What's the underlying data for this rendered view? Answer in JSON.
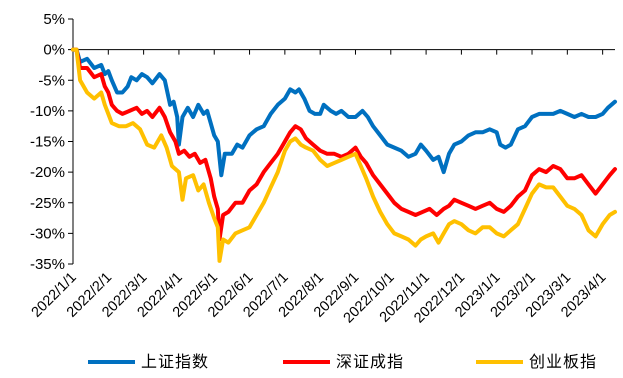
{
  "chart_data": {
    "type": "line",
    "title": "",
    "xlabel": "",
    "ylabel": "",
    "ylim": [
      -35,
      5
    ],
    "yticks": [
      5,
      0,
      -5,
      -10,
      -15,
      -20,
      -25,
      -30,
      -35
    ],
    "ytick_labels": [
      "5%",
      "0%",
      "-5%",
      "-10%",
      "-15%",
      "-20%",
      "-25%",
      "-30%",
      "-35%"
    ],
    "categories": [
      "2022/1/1",
      "2022/2/1",
      "2022/3/1",
      "2022/4/1",
      "2022/5/1",
      "2022/6/1",
      "2022/7/1",
      "2022/8/1",
      "2022/9/1",
      "2022/10/1",
      "2022/11/1",
      "2022/12/1",
      "2023/1/1",
      "2023/2/1",
      "2023/3/1",
      "2023/4/1"
    ],
    "x_end": 15.35,
    "legend_position": "bottom",
    "grid": false,
    "series": [
      {
        "name": "上证指数",
        "color": "#0070C0",
        "points": [
          [
            0,
            0
          ],
          [
            0.1,
            0
          ],
          [
            0.2,
            -2
          ],
          [
            0.4,
            -1.5
          ],
          [
            0.6,
            -3
          ],
          [
            0.8,
            -2.5
          ],
          [
            0.9,
            -4
          ],
          [
            1.0,
            -3.5
          ],
          [
            1.1,
            -5
          ],
          [
            1.25,
            -7
          ],
          [
            1.4,
            -7
          ],
          [
            1.55,
            -6
          ],
          [
            1.65,
            -4.5
          ],
          [
            1.8,
            -5
          ],
          [
            1.95,
            -4
          ],
          [
            2.1,
            -4.5
          ],
          [
            2.25,
            -5.5
          ],
          [
            2.45,
            -4
          ],
          [
            2.6,
            -5
          ],
          [
            2.75,
            -9
          ],
          [
            2.85,
            -8.5
          ],
          [
            2.95,
            -11
          ],
          [
            3.0,
            -15.5
          ],
          [
            3.1,
            -11
          ],
          [
            3.25,
            -9.5
          ],
          [
            3.4,
            -11
          ],
          [
            3.55,
            -9
          ],
          [
            3.7,
            -10.5
          ],
          [
            3.8,
            -10
          ],
          [
            3.9,
            -12
          ],
          [
            4.0,
            -14
          ],
          [
            4.1,
            -15
          ],
          [
            4.2,
            -20.5
          ],
          [
            4.3,
            -17
          ],
          [
            4.5,
            -17
          ],
          [
            4.65,
            -15.5
          ],
          [
            4.8,
            -16
          ],
          [
            5.0,
            -14
          ],
          [
            5.2,
            -13
          ],
          [
            5.4,
            -12.5
          ],
          [
            5.6,
            -10.5
          ],
          [
            5.8,
            -9
          ],
          [
            6.0,
            -8
          ],
          [
            6.15,
            -6.5
          ],
          [
            6.3,
            -7
          ],
          [
            6.4,
            -6.5
          ],
          [
            6.55,
            -8
          ],
          [
            6.7,
            -10
          ],
          [
            6.85,
            -10.5
          ],
          [
            7.0,
            -10.5
          ],
          [
            7.1,
            -9
          ],
          [
            7.3,
            -10
          ],
          [
            7.45,
            -10.5
          ],
          [
            7.6,
            -10
          ],
          [
            7.8,
            -11
          ],
          [
            8.0,
            -11
          ],
          [
            8.2,
            -10
          ],
          [
            8.35,
            -11
          ],
          [
            8.5,
            -12.5
          ],
          [
            8.7,
            -14
          ],
          [
            8.9,
            -15.5
          ],
          [
            9.1,
            -16
          ],
          [
            9.3,
            -16.5
          ],
          [
            9.5,
            -17.5
          ],
          [
            9.7,
            -17
          ],
          [
            9.85,
            -15.5
          ],
          [
            10.0,
            -16.5
          ],
          [
            10.2,
            -18
          ],
          [
            10.35,
            -17.5
          ],
          [
            10.5,
            -20
          ],
          [
            10.65,
            -17
          ],
          [
            10.8,
            -15.5
          ],
          [
            11.0,
            -15
          ],
          [
            11.2,
            -14
          ],
          [
            11.4,
            -13.5
          ],
          [
            11.6,
            -13.5
          ],
          [
            11.8,
            -13
          ],
          [
            12.0,
            -13.5
          ],
          [
            12.1,
            -15.5
          ],
          [
            12.25,
            -16
          ],
          [
            12.4,
            -15.5
          ],
          [
            12.6,
            -13
          ],
          [
            12.8,
            -12.5
          ],
          [
            13.0,
            -11
          ],
          [
            13.2,
            -10.5
          ],
          [
            13.4,
            -10.5
          ],
          [
            13.6,
            -10.5
          ],
          [
            13.8,
            -10
          ],
          [
            14.0,
            -10.5
          ],
          [
            14.2,
            -11
          ],
          [
            14.4,
            -10.5
          ],
          [
            14.6,
            -11
          ],
          [
            14.8,
            -11
          ],
          [
            15.0,
            -10.5
          ],
          [
            15.15,
            -9.5
          ],
          [
            15.35,
            -8.5
          ]
        ]
      },
      {
        "name": "深证成指",
        "color": "#FF0000",
        "points": [
          [
            0,
            0
          ],
          [
            0.1,
            0
          ],
          [
            0.2,
            -3
          ],
          [
            0.4,
            -3
          ],
          [
            0.6,
            -4.5
          ],
          [
            0.8,
            -4
          ],
          [
            0.9,
            -6
          ],
          [
            1.0,
            -7
          ],
          [
            1.1,
            -9
          ],
          [
            1.25,
            -10
          ],
          [
            1.4,
            -10.5
          ],
          [
            1.6,
            -10
          ],
          [
            1.8,
            -9.5
          ],
          [
            1.95,
            -10.5
          ],
          [
            2.1,
            -10
          ],
          [
            2.25,
            -11
          ],
          [
            2.45,
            -9.5
          ],
          [
            2.6,
            -11
          ],
          [
            2.75,
            -13.5
          ],
          [
            2.9,
            -15
          ],
          [
            3.0,
            -17
          ],
          [
            3.15,
            -16.5
          ],
          [
            3.3,
            -17.5
          ],
          [
            3.45,
            -17
          ],
          [
            3.6,
            -18.5
          ],
          [
            3.75,
            -18
          ],
          [
            3.9,
            -21
          ],
          [
            4.0,
            -24
          ],
          [
            4.1,
            -26
          ],
          [
            4.15,
            -31
          ],
          [
            4.25,
            -27
          ],
          [
            4.4,
            -26.5
          ],
          [
            4.6,
            -25
          ],
          [
            4.8,
            -25
          ],
          [
            5.0,
            -23
          ],
          [
            5.2,
            -22
          ],
          [
            5.4,
            -20
          ],
          [
            5.6,
            -18.5
          ],
          [
            5.8,
            -17
          ],
          [
            6.0,
            -15
          ],
          [
            6.15,
            -13.5
          ],
          [
            6.3,
            -12.5
          ],
          [
            6.45,
            -13
          ],
          [
            6.6,
            -14.5
          ],
          [
            6.8,
            -15.5
          ],
          [
            7.0,
            -16.5
          ],
          [
            7.2,
            -17
          ],
          [
            7.4,
            -17
          ],
          [
            7.6,
            -17.5
          ],
          [
            7.8,
            -17
          ],
          [
            8.0,
            -16
          ],
          [
            8.15,
            -17.5
          ],
          [
            8.3,
            -18.5
          ],
          [
            8.5,
            -20.5
          ],
          [
            8.7,
            -22
          ],
          [
            8.9,
            -23.5
          ],
          [
            9.1,
            -25
          ],
          [
            9.3,
            -26
          ],
          [
            9.5,
            -26.5
          ],
          [
            9.7,
            -27
          ],
          [
            9.9,
            -26.5
          ],
          [
            10.1,
            -26
          ],
          [
            10.3,
            -27
          ],
          [
            10.5,
            -26
          ],
          [
            10.65,
            -25.5
          ],
          [
            10.8,
            -24.5
          ],
          [
            11.0,
            -25
          ],
          [
            11.2,
            -25.5
          ],
          [
            11.4,
            -26
          ],
          [
            11.6,
            -25.5
          ],
          [
            11.8,
            -25
          ],
          [
            12.0,
            -26
          ],
          [
            12.2,
            -26.5
          ],
          [
            12.4,
            -25.5
          ],
          [
            12.6,
            -24
          ],
          [
            12.8,
            -23
          ],
          [
            13.0,
            -20.5
          ],
          [
            13.2,
            -19.5
          ],
          [
            13.4,
            -20
          ],
          [
            13.6,
            -19
          ],
          [
            13.8,
            -19.5
          ],
          [
            14.0,
            -21
          ],
          [
            14.2,
            -21
          ],
          [
            14.4,
            -20.5
          ],
          [
            14.6,
            -22
          ],
          [
            14.8,
            -23.5
          ],
          [
            15.0,
            -22
          ],
          [
            15.2,
            -20.5
          ],
          [
            15.35,
            -19.5
          ]
        ]
      },
      {
        "name": "创业板指",
        "color": "#FFC000",
        "points": [
          [
            0,
            0
          ],
          [
            0.1,
            0
          ],
          [
            0.2,
            -5
          ],
          [
            0.4,
            -7
          ],
          [
            0.6,
            -8
          ],
          [
            0.8,
            -7
          ],
          [
            0.9,
            -9
          ],
          [
            1.0,
            -10.5
          ],
          [
            1.1,
            -12
          ],
          [
            1.3,
            -12.5
          ],
          [
            1.5,
            -12.5
          ],
          [
            1.7,
            -12
          ],
          [
            1.9,
            -13
          ],
          [
            2.1,
            -15.5
          ],
          [
            2.3,
            -16
          ],
          [
            2.5,
            -14
          ],
          [
            2.65,
            -16
          ],
          [
            2.8,
            -19
          ],
          [
            3.0,
            -20
          ],
          [
            3.1,
            -24.5
          ],
          [
            3.2,
            -21
          ],
          [
            3.4,
            -20.5
          ],
          [
            3.55,
            -23
          ],
          [
            3.7,
            -22
          ],
          [
            3.85,
            -25
          ],
          [
            4.0,
            -27.5
          ],
          [
            4.1,
            -29
          ],
          [
            4.15,
            -34.5
          ],
          [
            4.25,
            -31
          ],
          [
            4.4,
            -31.5
          ],
          [
            4.6,
            -30
          ],
          [
            4.8,
            -29.5
          ],
          [
            5.0,
            -29
          ],
          [
            5.2,
            -27
          ],
          [
            5.4,
            -25
          ],
          [
            5.6,
            -22.5
          ],
          [
            5.8,
            -20
          ],
          [
            6.0,
            -16.5
          ],
          [
            6.15,
            -15
          ],
          [
            6.3,
            -14.5
          ],
          [
            6.45,
            -15.5
          ],
          [
            6.6,
            -16
          ],
          [
            6.8,
            -16.5
          ],
          [
            7.0,
            -18
          ],
          [
            7.2,
            -19
          ],
          [
            7.4,
            -18.5
          ],
          [
            7.6,
            -18
          ],
          [
            7.8,
            -17.5
          ],
          [
            8.0,
            -17
          ],
          [
            8.15,
            -19
          ],
          [
            8.3,
            -21
          ],
          [
            8.5,
            -24
          ],
          [
            8.7,
            -26.5
          ],
          [
            8.9,
            -28.5
          ],
          [
            9.1,
            -30
          ],
          [
            9.3,
            -30.5
          ],
          [
            9.5,
            -31
          ],
          [
            9.7,
            -32
          ],
          [
            9.85,
            -31
          ],
          [
            10.0,
            -30.5
          ],
          [
            10.2,
            -30
          ],
          [
            10.35,
            -31.5
          ],
          [
            10.5,
            -30
          ],
          [
            10.65,
            -28.5
          ],
          [
            10.8,
            -28
          ],
          [
            11.0,
            -28.5
          ],
          [
            11.2,
            -29.5
          ],
          [
            11.4,
            -30
          ],
          [
            11.6,
            -29
          ],
          [
            11.8,
            -29
          ],
          [
            12.0,
            -30
          ],
          [
            12.2,
            -30.5
          ],
          [
            12.4,
            -29.5
          ],
          [
            12.6,
            -28.5
          ],
          [
            12.8,
            -26
          ],
          [
            13.0,
            -23.5
          ],
          [
            13.2,
            -22
          ],
          [
            13.4,
            -22.5
          ],
          [
            13.6,
            -22.5
          ],
          [
            13.8,
            -24
          ],
          [
            14.0,
            -25.5
          ],
          [
            14.2,
            -26
          ],
          [
            14.4,
            -27
          ],
          [
            14.6,
            -29.5
          ],
          [
            14.8,
            -30.5
          ],
          [
            15.0,
            -28.5
          ],
          [
            15.2,
            -27
          ],
          [
            15.35,
            -26.5
          ]
        ]
      }
    ]
  }
}
